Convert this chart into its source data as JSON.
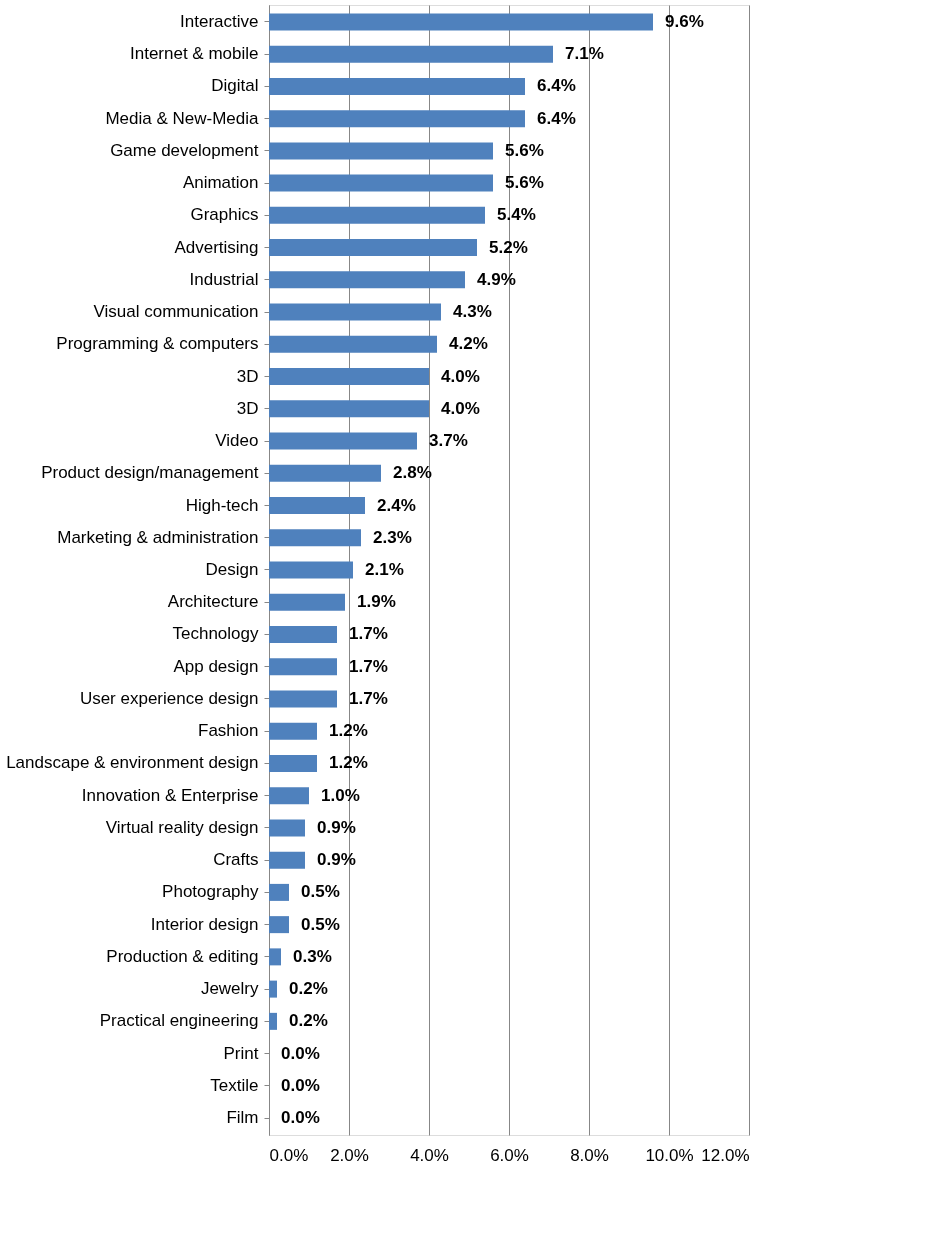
{
  "chart_data": {
    "type": "bar",
    "orientation": "horizontal",
    "categories": [
      "Interactive",
      "Internet & mobile",
      "Digital",
      "Media & New-Media",
      "Game development",
      "Animation",
      "Graphics",
      "Advertising",
      "Industrial",
      "Visual communication",
      "Programming & computers",
      "3D",
      "3D",
      "Video",
      "Product design/management",
      "High-tech",
      "Marketing & administration",
      "Design",
      "Architecture",
      "Technology",
      "App design",
      "User experience design",
      "Fashion",
      "Landscape & environment design",
      "Innovation & Enterprise",
      "Virtual reality design",
      "Crafts",
      "Photography",
      "Interior design",
      "Production & editing",
      "Jewelry",
      "Practical engineering",
      "Print",
      "Textile",
      "Film"
    ],
    "values": [
      9.6,
      7.1,
      6.4,
      6.4,
      5.6,
      5.6,
      5.4,
      5.2,
      4.9,
      4.3,
      4.2,
      4.0,
      4.0,
      3.7,
      2.8,
      2.4,
      2.3,
      2.1,
      1.9,
      1.7,
      1.7,
      1.7,
      1.2,
      1.2,
      1.0,
      0.9,
      0.9,
      0.5,
      0.5,
      0.3,
      0.2,
      0.2,
      0.0,
      0.0,
      0.0
    ],
    "value_labels": [
      "9.6%",
      "7.1%",
      "6.4%",
      "6.4%",
      "5.6%",
      "5.6%",
      "5.4%",
      "5.2%",
      "4.9%",
      "4.3%",
      "4.2%",
      "4.0%",
      "4.0%",
      "3.7%",
      "2.8%",
      "2.4%",
      "2.3%",
      "2.1%",
      "1.9%",
      "1.7%",
      "1.7%",
      "1.7%",
      "1.2%",
      "1.2%",
      "1.0%",
      "0.9%",
      "0.9%",
      "0.5%",
      "0.5%",
      "0.3%",
      "0.2%",
      "0.2%",
      "0.0%",
      "0.0%",
      "0.0%"
    ],
    "color": "#4f81bd",
    "xlim": [
      0,
      12
    ],
    "xticks": [
      {
        "value": 0,
        "label": "0.0%"
      },
      {
        "value": 2,
        "label": "2.0%"
      },
      {
        "value": 4,
        "label": "4.0%"
      },
      {
        "value": 6,
        "label": "6.0%"
      },
      {
        "value": 8,
        "label": "8.0%"
      },
      {
        "value": 10,
        "label": "10.0%"
      },
      {
        "value": 12,
        "label": "12.0%"
      }
    ],
    "grid": "x"
  }
}
